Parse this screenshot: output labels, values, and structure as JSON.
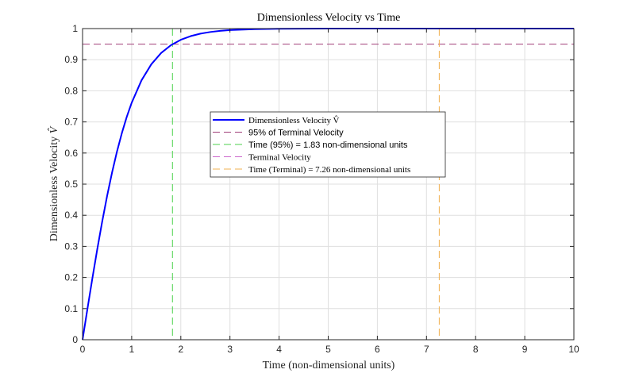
{
  "chart_data": {
    "type": "line",
    "title": "Dimensionless Velocity vs Time",
    "xlabel": "Time (non-dimensional units)",
    "ylabel": "Dimensionless Velocity",
    "ylabel_symbol": "V̂",
    "xlim": [
      0,
      10
    ],
    "ylim": [
      0,
      1
    ],
    "xticks": [
      0,
      1,
      2,
      3,
      4,
      5,
      6,
      7,
      8,
      9,
      10
    ],
    "yticks": [
      0,
      0.1,
      0.2,
      0.3,
      0.4,
      0.5,
      0.6,
      0.7,
      0.8,
      0.9,
      1
    ],
    "grid": true,
    "legend_position": "center",
    "series": [
      {
        "name": "Dimensionless Velocity V̂",
        "color": "#0000ff",
        "style": "solid",
        "x": [
          0,
          0.1,
          0.2,
          0.3,
          0.4,
          0.5,
          0.6,
          0.7,
          0.8,
          0.9,
          1.0,
          1.2,
          1.4,
          1.6,
          1.8,
          2.0,
          2.2,
          2.4,
          2.6,
          2.8,
          3.0,
          3.5,
          4.0,
          4.5,
          5.0,
          6.0,
          7.0,
          8.0,
          9.0,
          10.0
        ],
        "y": [
          0,
          0.0997,
          0.1974,
          0.2913,
          0.38,
          0.4621,
          0.537,
          0.6044,
          0.664,
          0.7163,
          0.7616,
          0.8337,
          0.8854,
          0.9217,
          0.9468,
          0.964,
          0.9757,
          0.9837,
          0.989,
          0.9926,
          0.9951,
          0.9982,
          0.9993,
          0.9998,
          0.9999,
          1.0,
          1.0,
          1.0,
          1.0,
          1.0
        ]
      },
      {
        "name": "95% of Terminal Velocity",
        "color": "#a03c78",
        "style": "dashed",
        "orientation": "horizontal",
        "value": 0.95
      },
      {
        "name": "Time (95%) = 1.83 non-dimensional units",
        "color": "#4cd24c",
        "style": "dashed",
        "orientation": "vertical",
        "value": 1.83
      },
      {
        "name": "Terminal Velocity",
        "color": "#cc66cc",
        "style": "dashed",
        "orientation": "horizontal",
        "value": 1.0
      },
      {
        "name": "Time (Terminal) = 7.26 non-dimensional units",
        "color": "#f0b050",
        "style": "dashed",
        "orientation": "vertical",
        "value": 7.26
      }
    ]
  }
}
